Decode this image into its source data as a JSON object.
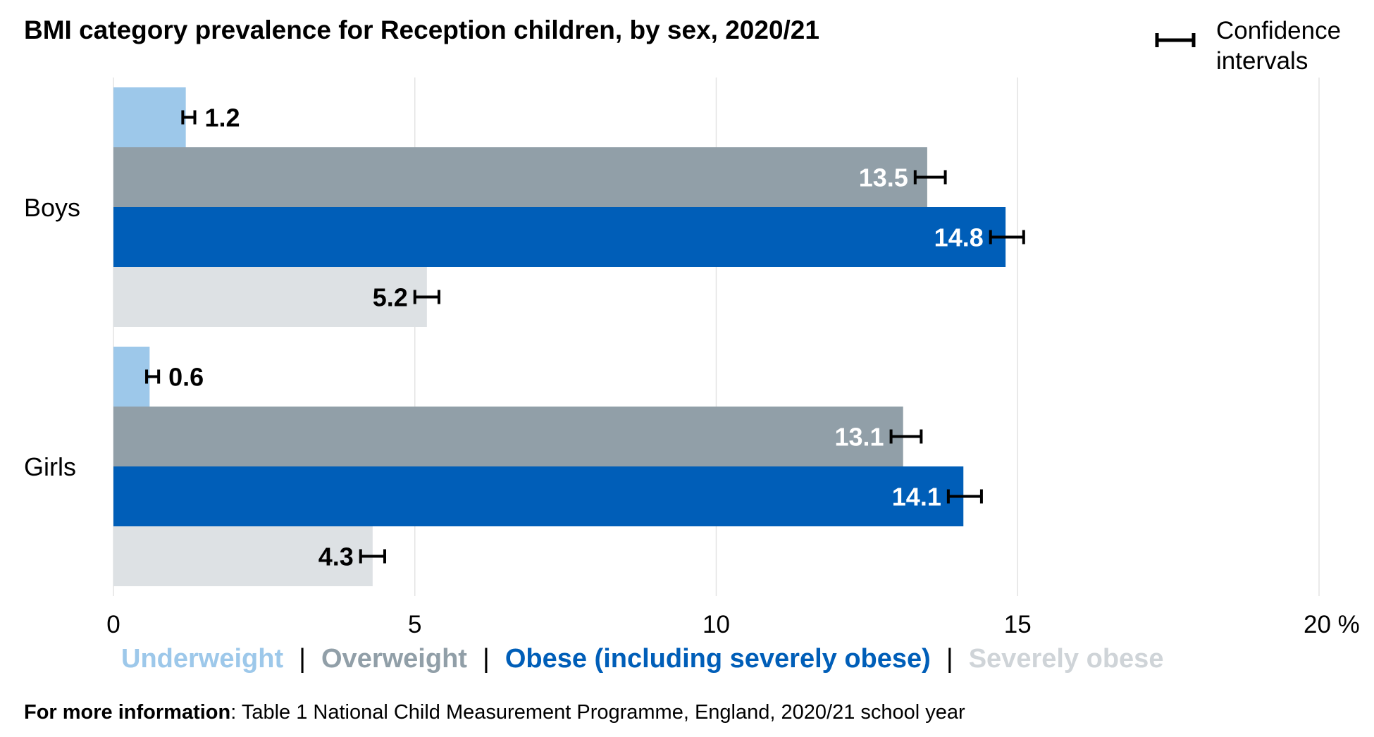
{
  "title": "BMI category prevalence for Reception children, by sex, 2020/21",
  "ci_legend_line1": "Confidence",
  "ci_legend_line2": "intervals",
  "footer_bold": "For more information",
  "footer_text": ": Table 1 National Child Measurement Programme, England, 2020/21 school year",
  "colors": {
    "underweight": "#9dc8ea",
    "overweight": "#919fa8",
    "obese": "#005eb8",
    "severely_obese": "#dde1e4"
  },
  "legend_separator": "|",
  "chart_data": {
    "type": "bar",
    "orientation": "horizontal",
    "title": "BMI category prevalence for Reception children, by sex, 2020/21",
    "categories": [
      "Boys",
      "Girls"
    ],
    "series": [
      {
        "name": "Underweight",
        "values": [
          1.2,
          0.6
        ],
        "color": "#9dc8ea",
        "label_color": "#000000",
        "label_position": "outside"
      },
      {
        "name": "Overweight",
        "values": [
          13.5,
          13.1
        ],
        "color": "#919fa8",
        "label_color": "#ffffff",
        "label_position": "inside"
      },
      {
        "name": "Obese (including severely obese)",
        "values": [
          14.8,
          14.1
        ],
        "color": "#005eb8",
        "label_color": "#ffffff",
        "label_position": "inside"
      },
      {
        "name": "Severely obese",
        "values": [
          5.2,
          4.3
        ],
        "color": "#dde1e4",
        "label_color": "#000000",
        "label_position": "inside"
      }
    ],
    "confidence_intervals": [
      [
        [
          1.15,
          1.35
        ],
        [
          0.55,
          0.75
        ]
      ],
      [
        [
          13.3,
          13.8
        ],
        [
          12.9,
          13.4
        ]
      ],
      [
        [
          14.55,
          15.1
        ],
        [
          13.85,
          14.4
        ]
      ],
      [
        [
          5.0,
          5.4
        ],
        [
          4.1,
          4.5
        ]
      ]
    ],
    "xlim": [
      0,
      20
    ],
    "xticks": [
      "0",
      "5",
      "10",
      "15",
      "20 %"
    ],
    "xtick_values": [
      0,
      5,
      10,
      15,
      20
    ],
    "grid": true,
    "legend_position": "bottom"
  }
}
